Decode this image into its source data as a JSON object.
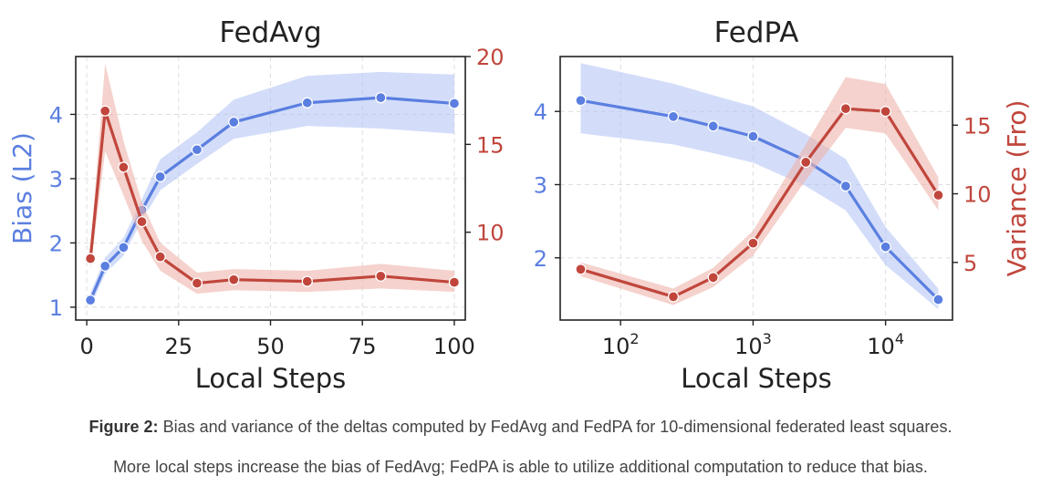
{
  "colors": {
    "bias": "#5b7fe0",
    "bias_band": "#b6c6f5",
    "variance": "#c0463c",
    "variance_band": "#eeb4ac",
    "axis": "#222222",
    "grid": "#dddddd"
  },
  "chart_data": [
    {
      "type": "line",
      "title": "FedAvg",
      "xlabel": "Local Steps",
      "ylabel_left": "Bias (L2)",
      "ylabel_right": "",
      "xscale": "linear",
      "xlim": [
        -3,
        103
      ],
      "ylim_left": [
        0.8,
        4.9
      ],
      "ylim_right": [
        5,
        20
      ],
      "xticks": [
        0,
        25,
        50,
        75,
        100
      ],
      "xtick_labels": [
        "0",
        "25",
        "50",
        "75",
        "100"
      ],
      "yticks_left": [
        1,
        2,
        3,
        4
      ],
      "yticks_right": [
        10,
        15,
        20
      ],
      "grid": true,
      "series": [
        {
          "axis": "left",
          "color": "bias",
          "x": [
            1,
            5,
            10,
            15,
            20,
            30,
            40,
            60,
            80,
            100
          ],
          "y": [
            1.11,
            1.64,
            1.93,
            2.51,
            3.03,
            3.45,
            3.88,
            4.18,
            4.26,
            4.17
          ],
          "lower": [
            1.0,
            1.52,
            1.8,
            2.35,
            2.82,
            3.23,
            3.62,
            3.82,
            3.78,
            3.7
          ],
          "upper": [
            1.22,
            1.77,
            2.08,
            2.68,
            3.3,
            3.72,
            4.23,
            4.6,
            4.66,
            4.62
          ]
        },
        {
          "axis": "right",
          "color": "variance",
          "x": [
            1,
            5,
            10,
            15,
            20,
            30,
            40,
            60,
            80,
            100
          ],
          "y": [
            8.5,
            16.9,
            13.7,
            10.6,
            8.6,
            7.1,
            7.3,
            7.2,
            7.5,
            7.15
          ],
          "lower": [
            7.9,
            14.6,
            12.1,
            9.5,
            7.8,
            6.5,
            6.7,
            6.6,
            6.8,
            6.6
          ],
          "upper": [
            9.1,
            19.6,
            15.2,
            11.7,
            9.4,
            7.7,
            7.9,
            7.8,
            8.2,
            7.8
          ]
        }
      ]
    },
    {
      "type": "line",
      "title": "FedPA",
      "xlabel": "Local Steps",
      "ylabel_left": "",
      "ylabel_right": "Variance (Fro)",
      "xscale": "log",
      "xlim": [
        35,
        32000
      ],
      "ylim_left": [
        1.15,
        4.75
      ],
      "ylim_right": [
        0.8,
        20
      ],
      "xticks": [
        100,
        1000,
        10000
      ],
      "xtick_labels": [
        "10",
        "10",
        "10"
      ],
      "xtick_exponents": [
        "2",
        "3",
        "4"
      ],
      "yticks_left": [
        2,
        3,
        4
      ],
      "yticks_right": [
        5,
        10,
        15
      ],
      "grid": true,
      "series": [
        {
          "axis": "left",
          "color": "bias",
          "x": [
            50,
            250,
            500,
            1000,
            2500,
            5000,
            10000,
            25000
          ],
          "y": [
            4.15,
            3.93,
            3.8,
            3.66,
            3.33,
            2.98,
            2.15,
            1.43
          ],
          "lower": [
            3.7,
            3.55,
            3.43,
            3.3,
            2.98,
            2.65,
            1.9,
            1.3
          ],
          "upper": [
            4.66,
            4.38,
            4.22,
            4.07,
            3.69,
            3.35,
            2.42,
            1.58
          ]
        },
        {
          "axis": "right",
          "color": "variance",
          "x": [
            50,
            250,
            500,
            1000,
            2500,
            5000,
            10000,
            25000
          ],
          "y": [
            4.5,
            2.5,
            3.9,
            6.4,
            12.3,
            16.2,
            16.0,
            9.9
          ],
          "lower": [
            4.0,
            1.9,
            3.2,
            5.5,
            11.0,
            14.8,
            14.4,
            8.8
          ],
          "upper": [
            5.0,
            3.1,
            4.6,
            7.3,
            13.6,
            18.5,
            18.0,
            11.2
          ]
        }
      ]
    }
  ],
  "caption": {
    "label": "Figure 2:",
    "line1": "Bias and variance of the deltas computed by FedAvg and FedPA for 10-dimensional federated least squares.",
    "line2": "More local steps increase the bias of FedAvg; FedPA is able to utilize additional computation to reduce that bias."
  }
}
